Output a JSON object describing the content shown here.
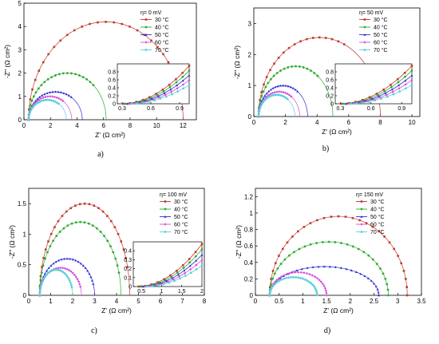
{
  "figure": {
    "series_names": [
      "30 °C",
      "40 °C",
      "50 °C",
      "60 °C",
      "70 °C"
    ],
    "series_colors": [
      "#c0392b",
      "#2eaa2e",
      "#2b2bd6",
      "#d84bd8",
      "#59d0d8"
    ]
  },
  "chart_data": [
    {
      "id": "a",
      "type": "scatter",
      "panel_label": "a)",
      "legend_title": "η= 0 mV",
      "xlabel": "Z' (Ω cm²)",
      "ylabel": "-Z'' (Ω cm²)",
      "xlim": [
        0,
        13
      ],
      "ylim": [
        0,
        5
      ],
      "xticks": [
        0,
        2,
        4,
        6,
        8,
        10,
        12
      ],
      "yticks": [
        0,
        1,
        2,
        3,
        4,
        5
      ],
      "series": [
        {
          "name": "30 °C",
          "arc": {
            "r0": 0.35,
            "r1": 12.0,
            "peak": 4.2,
            "ext": 0.8
          }
        },
        {
          "name": "40 °C",
          "arc": {
            "r0": 0.35,
            "r1": 6.2,
            "peak": 2.0,
            "ext": 0.75
          }
        },
        {
          "name": "50 °C",
          "arc": {
            "r0": 0.35,
            "r1": 4.4,
            "peak": 1.2,
            "ext": 0.7
          }
        },
        {
          "name": "60 °C",
          "arc": {
            "r0": 0.35,
            "r1": 3.6,
            "peak": 1.0,
            "ext": 0.7
          }
        },
        {
          "name": "70 °C",
          "arc": {
            "r0": 0.35,
            "r1": 3.2,
            "peak": 0.85,
            "ext": 0.7
          }
        }
      ],
      "inset": {
        "xlim": [
          0.25,
          1.0
        ],
        "ylim": [
          0,
          1.0
        ],
        "xticks": [
          0.3,
          0.6,
          0.9
        ],
        "yticks": [
          0.0,
          0.2,
          0.4,
          0.6,
          0.8
        ]
      }
    },
    {
      "id": "b",
      "type": "scatter",
      "panel_label": "b)",
      "legend_title": "η= 50 mV",
      "xlabel": "Z' (Ω cm²)",
      "ylabel": "-Z'' (Ω cm²)",
      "xlim": [
        0,
        10.5
      ],
      "ylim": [
        0,
        3.5
      ],
      "xticks": [
        0,
        2,
        4,
        6,
        8,
        10
      ],
      "yticks": [
        0,
        1,
        2,
        3
      ],
      "series": [
        {
          "name": "30 °C",
          "arc": {
            "r0": 0.3,
            "r1": 8.0,
            "peak": 2.55,
            "ext": 0.65
          }
        },
        {
          "name": "40 °C",
          "arc": {
            "r0": 0.3,
            "r1": 5.0,
            "peak": 1.62,
            "ext": 0.7
          }
        },
        {
          "name": "50 °C",
          "arc": {
            "r0": 0.3,
            "r1": 3.4,
            "peak": 1.0,
            "ext": 0.72
          }
        },
        {
          "name": "60 °C",
          "arc": {
            "r0": 0.3,
            "r1": 2.9,
            "peak": 0.8,
            "ext": 0.72
          }
        },
        {
          "name": "70 °C",
          "arc": {
            "r0": 0.3,
            "r1": 2.6,
            "peak": 0.7,
            "ext": 0.72
          }
        }
      ],
      "inset": {
        "xlim": [
          0.25,
          1.0
        ],
        "ylim": [
          0,
          1.0
        ],
        "xticks": [
          0.3,
          0.6,
          0.9
        ],
        "yticks": [
          0.0,
          0.2,
          0.4,
          0.6,
          0.8
        ]
      }
    },
    {
      "id": "c",
      "type": "scatter",
      "panel_label": "c)",
      "legend_title": "η= 100 mV",
      "xlabel": "Z' (Ω cm²)",
      "ylabel": "-Z'' (Ω cm²)",
      "xlim": [
        0,
        8
      ],
      "ylim": [
        0,
        1.75
      ],
      "xticks": [
        0,
        1,
        2,
        3,
        4,
        5,
        6,
        7,
        8
      ],
      "yticks": [
        0.0,
        0.5,
        1.0,
        1.5
      ],
      "series": [
        {
          "name": "30 °C",
          "arc": {
            "r0": 0.5,
            "r1": 4.6,
            "peak": 1.5,
            "ext": 0.9
          }
        },
        {
          "name": "40 °C",
          "arc": {
            "r0": 0.5,
            "r1": 4.2,
            "peak": 1.2,
            "ext": 0.9
          }
        },
        {
          "name": "50 °C",
          "arc": {
            "r0": 0.5,
            "r1": 3.0,
            "peak": 0.6,
            "ext": 0.9
          }
        },
        {
          "name": "60 °C",
          "arc": {
            "r0": 0.5,
            "r1": 2.4,
            "peak": 0.45,
            "ext": 0.9
          }
        },
        {
          "name": "70 °C",
          "arc": {
            "r0": 0.5,
            "r1": 2.0,
            "peak": 0.42,
            "ext": 0.9
          }
        }
      ],
      "inset": {
        "xlim": [
          0.3,
          2.0
        ],
        "ylim": [
          0,
          0.5
        ],
        "xticks": [
          0.5,
          1.0,
          1.5,
          2.0
        ],
        "yticks": [
          0.0,
          0.1,
          0.2,
          0.3,
          0.4
        ]
      }
    },
    {
      "id": "d",
      "type": "scatter",
      "panel_label": "d)",
      "legend_title": "η= 150 mV",
      "xlabel": "Z' (Ω cm²)",
      "ylabel": "-Z'' (Ω cm²)",
      "xlim": [
        0,
        3.5
      ],
      "ylim": [
        0,
        1.3
      ],
      "xticks": [
        0.0,
        0.5,
        1.0,
        1.5,
        2.0,
        2.5,
        3.0,
        3.5
      ],
      "yticks": [
        0.0,
        0.2,
        0.4,
        0.6,
        0.8,
        1.0,
        1.2
      ],
      "series": [
        {
          "name": "30 °C",
          "arc": {
            "r0": 0.3,
            "r1": 3.2,
            "peak": 0.96,
            "ext": 1.0
          }
        },
        {
          "name": "40 °C",
          "arc": {
            "r0": 0.3,
            "r1": 2.8,
            "peak": 0.65,
            "ext": 1.0
          }
        },
        {
          "name": "50 °C",
          "arc": {
            "r0": 0.3,
            "r1": 2.6,
            "peak": 0.35,
            "ext": 1.0
          }
        },
        {
          "name": "60 °C",
          "arc": {
            "r0": 0.3,
            "r1": 1.5,
            "peak": 0.28,
            "ext": 1.0
          }
        },
        {
          "name": "70 °C",
          "arc": {
            "r0": 0.3,
            "r1": 1.3,
            "peak": 0.22,
            "ext": 1.0
          }
        }
      ],
      "inset": null
    }
  ]
}
